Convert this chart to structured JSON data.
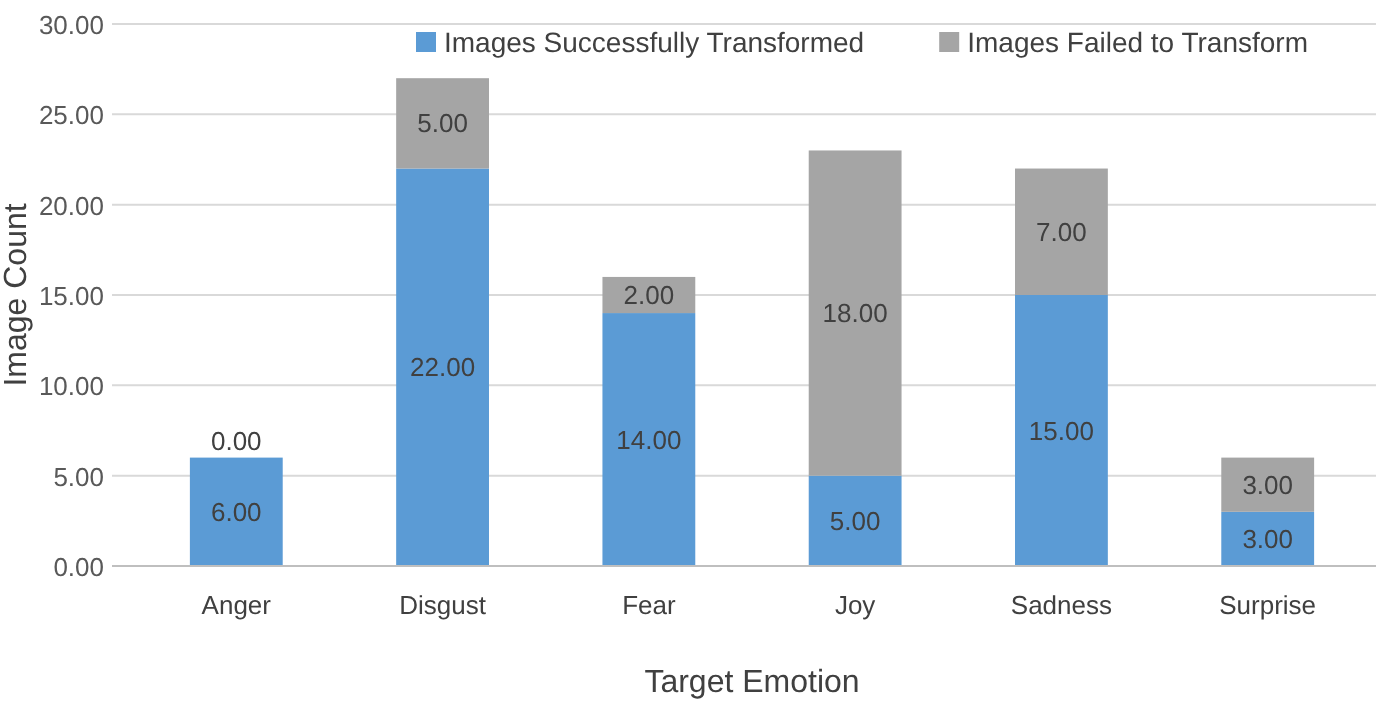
{
  "chart_data": {
    "type": "bar",
    "stacked": true,
    "xlabel": "Target Emotion",
    "ylabel": "Image Count",
    "categories": [
      "Anger",
      "Disgust",
      "Fear",
      "Joy",
      "Sadness",
      "Surprise"
    ],
    "series": [
      {
        "name": "Images Successfully Transformed",
        "color": "#5b9bd5",
        "values": [
          6,
          22,
          14,
          5,
          15,
          3
        ],
        "value_labels": [
          "6.00",
          "22.00",
          "14.00",
          "5.00",
          "15.00",
          "3.00"
        ]
      },
      {
        "name": "Images Failed to Transform",
        "color": "#a5a5a5",
        "values": [
          0,
          5,
          2,
          18,
          7,
          3
        ],
        "value_labels": [
          "0.00",
          "5.00",
          "2.00",
          "18.00",
          "7.00",
          "3.00"
        ]
      }
    ],
    "ylim": [
      0,
      30
    ],
    "yticks": [
      {
        "value": 0,
        "label": "0.00"
      },
      {
        "value": 5,
        "label": "5.00"
      },
      {
        "value": 10,
        "label": "10.00"
      },
      {
        "value": 15,
        "label": "15.00"
      },
      {
        "value": 20,
        "label": "20.00"
      },
      {
        "value": 25,
        "label": "25.00"
      },
      {
        "value": 30,
        "label": "30.00"
      }
    ],
    "grid": "y",
    "legend": "top right"
  }
}
